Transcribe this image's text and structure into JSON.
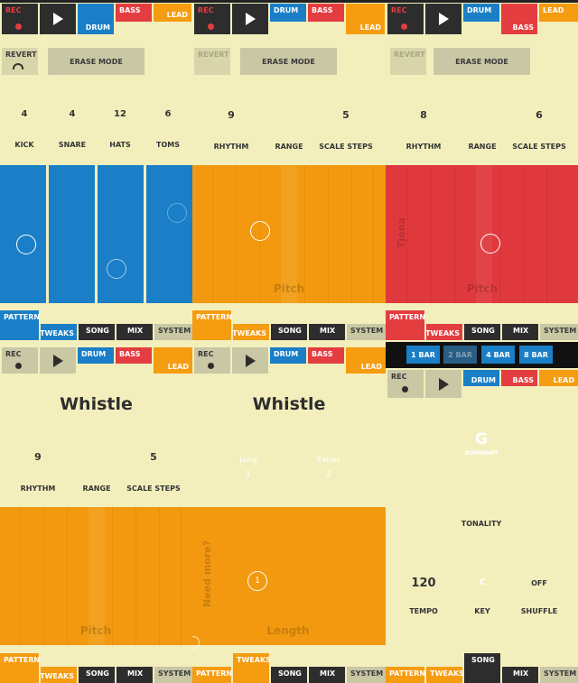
{
  "track_buttons": {
    "rec": "REC",
    "drum": "DRUM",
    "bass": "BASS",
    "lead": "LEAD"
  },
  "actions": {
    "revert": "REVERT",
    "erase_mode": "ERASE MODE"
  },
  "tabs": {
    "pattern": "PATTERN",
    "tweaks": "TWEAKS",
    "song": "SONG",
    "mix": "MIX",
    "system": "SYSTEM"
  },
  "panel1": {
    "knobs": [
      {
        "label": "KICK",
        "value": "4"
      },
      {
        "label": "SNARE",
        "value": "4"
      },
      {
        "label": "HATS",
        "value": "12"
      },
      {
        "label": "TOMS",
        "value": "6"
      }
    ]
  },
  "panel2": {
    "rhythm": {
      "label": "RHYTHM",
      "value": "9"
    },
    "range": {
      "label": "RANGE"
    },
    "scale": {
      "label": "SCALE STEPS",
      "value": "5"
    },
    "axis_label": "Pitch"
  },
  "panel3": {
    "rhythm": {
      "label": "RHYTHM",
      "value": "8"
    },
    "range": {
      "label": "RANGE"
    },
    "scale": {
      "label": "SCALE STEPS",
      "value": "6"
    },
    "axis_label": "Pitch",
    "vertical_label": "Tjena"
  },
  "panel4": {
    "title": "Whistle",
    "rhythm": {
      "label": "RHYTHM",
      "value": "9"
    },
    "range": {
      "label": "RANGE"
    },
    "scale": {
      "label": "SCALE STEPS",
      "value": "5"
    },
    "axis_label": "Pitch"
  },
  "panel5": {
    "title": "Whistle",
    "hex1": {
      "label": "Lung",
      "value": "1"
    },
    "hex2": {
      "label": "Extras",
      "value": "2"
    },
    "vertical_label": "Need more?",
    "axis_label": "Length",
    "marker": "1"
  },
  "panel6": {
    "bars": [
      "1 BAR",
      "2 BAR",
      "4 BAR",
      "8 BAR"
    ],
    "tonality": {
      "note": "G",
      "mode": "DOMINANT",
      "label": "TONALITY"
    },
    "tempo": {
      "value": "120",
      "label": "TEMPO"
    },
    "key": {
      "value": "C",
      "label": "KEY"
    },
    "shuffle": {
      "value": "OFF",
      "label": "SHUFFLE"
    }
  },
  "colors": {
    "drum": "#1a7fc6",
    "bass": "#e43d40",
    "lead": "#f59c10",
    "dark": "#2d2d2d",
    "background": "#f3efbd"
  }
}
